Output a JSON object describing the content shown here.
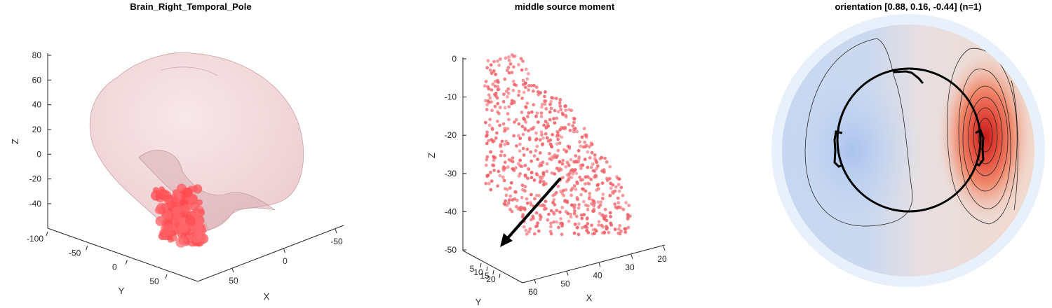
{
  "chart_data": [
    {
      "type": "scatter",
      "title": "Brain_Right_Temporal_Pole",
      "xlabel": "X",
      "ylabel": "Y",
      "zlabel": "Z",
      "z_ticks": [
        "80",
        "60",
        "40",
        "20",
        "0",
        "-20",
        "-40"
      ],
      "y_ticks": [
        "-100",
        "-50",
        "0",
        "50"
      ],
      "x_ticks": [
        "50",
        "0",
        "-50"
      ],
      "zlim": [
        -50,
        80
      ],
      "ylim": [
        -100,
        60
      ],
      "xlim": [
        70,
        -75
      ],
      "colors": {
        "brain": "#f2cfd2",
        "region": "#ff5a5f"
      }
    },
    {
      "type": "scatter",
      "title": "middle source moment",
      "xlabel": "X",
      "ylabel": "Y",
      "zlabel": "Z",
      "z_ticks": [
        "0",
        "-10",
        "-20",
        "-30",
        "-40",
        "-50"
      ],
      "y_ticks": [
        "5",
        "10",
        "15",
        "20"
      ],
      "x_ticks": [
        "60",
        "50",
        "40",
        "30",
        "20"
      ],
      "zlim": [
        -50,
        2
      ],
      "ylim": [
        3,
        22
      ],
      "xlim": [
        65,
        18
      ],
      "colors": {
        "points": "#f0636a",
        "arrow": "#000000"
      }
    },
    {
      "type": "heatmap",
      "title": "orientation [0.88, 0.16, -0.44] (n=1)",
      "orientation": [
        0.88,
        0.16,
        -0.44
      ],
      "n": 1,
      "colors": {
        "positive": "#d7301f",
        "negative": "#a8c4ec",
        "rim": "#e7f0fb"
      }
    }
  ]
}
